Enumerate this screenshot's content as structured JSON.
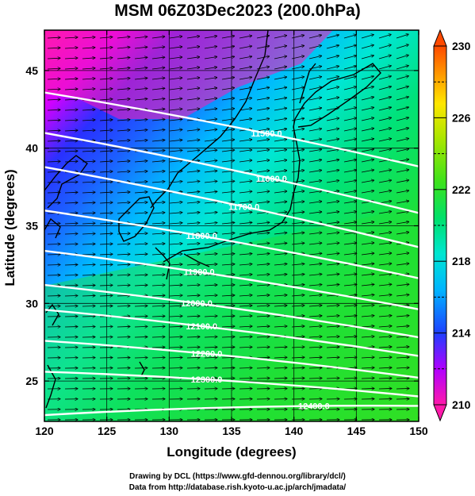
{
  "title": "MSM 06Z03Dec2023 (200.0hPa)",
  "x_axis": {
    "label": "Longitude (degrees)",
    "ticks": [
      120,
      125,
      130,
      135,
      140,
      145,
      150
    ],
    "range": [
      120,
      150
    ]
  },
  "y_axis": {
    "label": "Latitude  (degrees)",
    "ticks": [
      25,
      30,
      35,
      40,
      45
    ],
    "range": [
      22.4,
      47.6
    ]
  },
  "colorbar": {
    "ticks": [
      210,
      214,
      218,
      222,
      226,
      230
    ],
    "range": [
      210,
      230
    ],
    "colors": [
      "#ff1aaa",
      "#b000ff",
      "#1e40ff",
      "#00b4ff",
      "#00e6d2",
      "#00e06a",
      "#3ce21c",
      "#a8e600",
      "#ffe600",
      "#ff9a00",
      "#ff4a00"
    ]
  },
  "contours": [
    {
      "label": "11500.0",
      "lat_w": 43.6,
      "lat_e": 38.8,
      "label_lon": 137.8
    },
    {
      "label": "11600.0",
      "lat_w": 41.0,
      "lat_e": 35.8,
      "label_lon": 138.2
    },
    {
      "label": "11700.0",
      "lat_w": 38.8,
      "lat_e": 33.6,
      "label_lon": 136.0
    },
    {
      "label": "11800.0",
      "lat_w": 36.0,
      "lat_e": 31.6,
      "label_lon": 132.6
    },
    {
      "label": "11900.0",
      "lat_w": 33.4,
      "lat_e": 29.6,
      "label_lon": 132.4
    },
    {
      "label": "12000.0",
      "lat_w": 31.2,
      "lat_e": 27.8,
      "label_lon": 132.2
    },
    {
      "label": "12100.0",
      "lat_w": 29.6,
      "lat_e": 26.6,
      "label_lon": 132.6
    },
    {
      "label": "12200.0",
      "lat_w": 27.6,
      "lat_e": 25.2,
      "label_lon": 133.0
    },
    {
      "label": "12300.0",
      "lat_w": 25.6,
      "lat_e": 24.0,
      "label_lon": 133.0
    },
    {
      "label": "12400.0",
      "lat_w": 22.8,
      "lat_e": 23.4,
      "label_lon": 141.6
    }
  ],
  "credits": {
    "line1": "Drawing by DCL (https://www.gfd-dennou.org/library/dcl/)",
    "line2": "Data from http://database.rish.kyoto-u.ac.jp/arch/jmadata/"
  }
}
